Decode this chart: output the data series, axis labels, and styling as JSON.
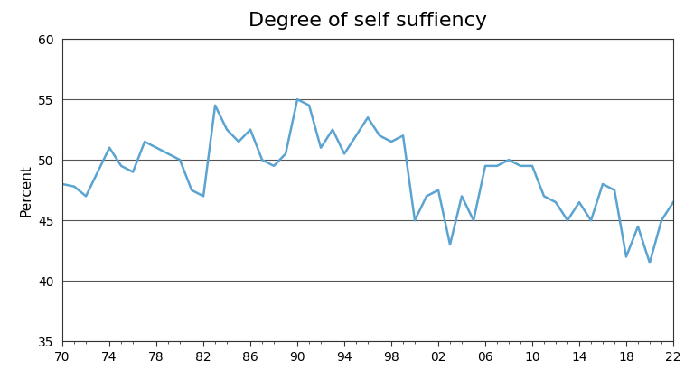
{
  "title": "Degree of self suffiency",
  "ylabel": "Percent",
  "line_color": "#5BA3D0",
  "line_width": 1.8,
  "background_color": "#ffffff",
  "ylim": [
    35,
    60
  ],
  "yticks": [
    35,
    40,
    45,
    50,
    55,
    60
  ],
  "xtick_labels": [
    "70",
    "74",
    "78",
    "82",
    "86",
    "90",
    "94",
    "98",
    "02",
    "06",
    "10",
    "14",
    "18",
    "22"
  ],
  "xtick_values": [
    1970,
    1974,
    1978,
    1982,
    1986,
    1990,
    1994,
    1998,
    2002,
    2006,
    2010,
    2014,
    2018,
    2022
  ],
  "title_fontsize": 16,
  "years": [
    1970,
    1971,
    1972,
    1973,
    1974,
    1975,
    1976,
    1977,
    1978,
    1979,
    1980,
    1981,
    1982,
    1983,
    1984,
    1985,
    1986,
    1987,
    1988,
    1989,
    1990,
    1991,
    1992,
    1993,
    1994,
    1995,
    1996,
    1997,
    1998,
    1999,
    2000,
    2001,
    2002,
    2003,
    2004,
    2005,
    2006,
    2007,
    2008,
    2009,
    2010,
    2011,
    2012,
    2013,
    2014,
    2015,
    2016,
    2017,
    2018,
    2019,
    2020,
    2021,
    2022
  ],
  "values": [
    48.0,
    47.8,
    47.0,
    49.0,
    51.0,
    49.5,
    49.0,
    51.5,
    51.0,
    50.5,
    50.0,
    47.5,
    47.0,
    54.5,
    52.5,
    51.5,
    52.5,
    50.0,
    49.5,
    50.5,
    55.0,
    54.5,
    51.0,
    52.5,
    50.5,
    52.0,
    53.5,
    52.0,
    51.5,
    52.0,
    45.0,
    47.0,
    47.5,
    43.0,
    47.0,
    45.0,
    49.5,
    49.5,
    50.0,
    49.5,
    49.5,
    47.0,
    46.5,
    45.0,
    46.5,
    45.0,
    48.0,
    47.5,
    42.0,
    44.5,
    41.5,
    45.0,
    46.5
  ],
  "grid_color": "#555555",
  "grid_linewidth": 0.8,
  "spine_color": "#333333",
  "spine_linewidth": 0.8
}
